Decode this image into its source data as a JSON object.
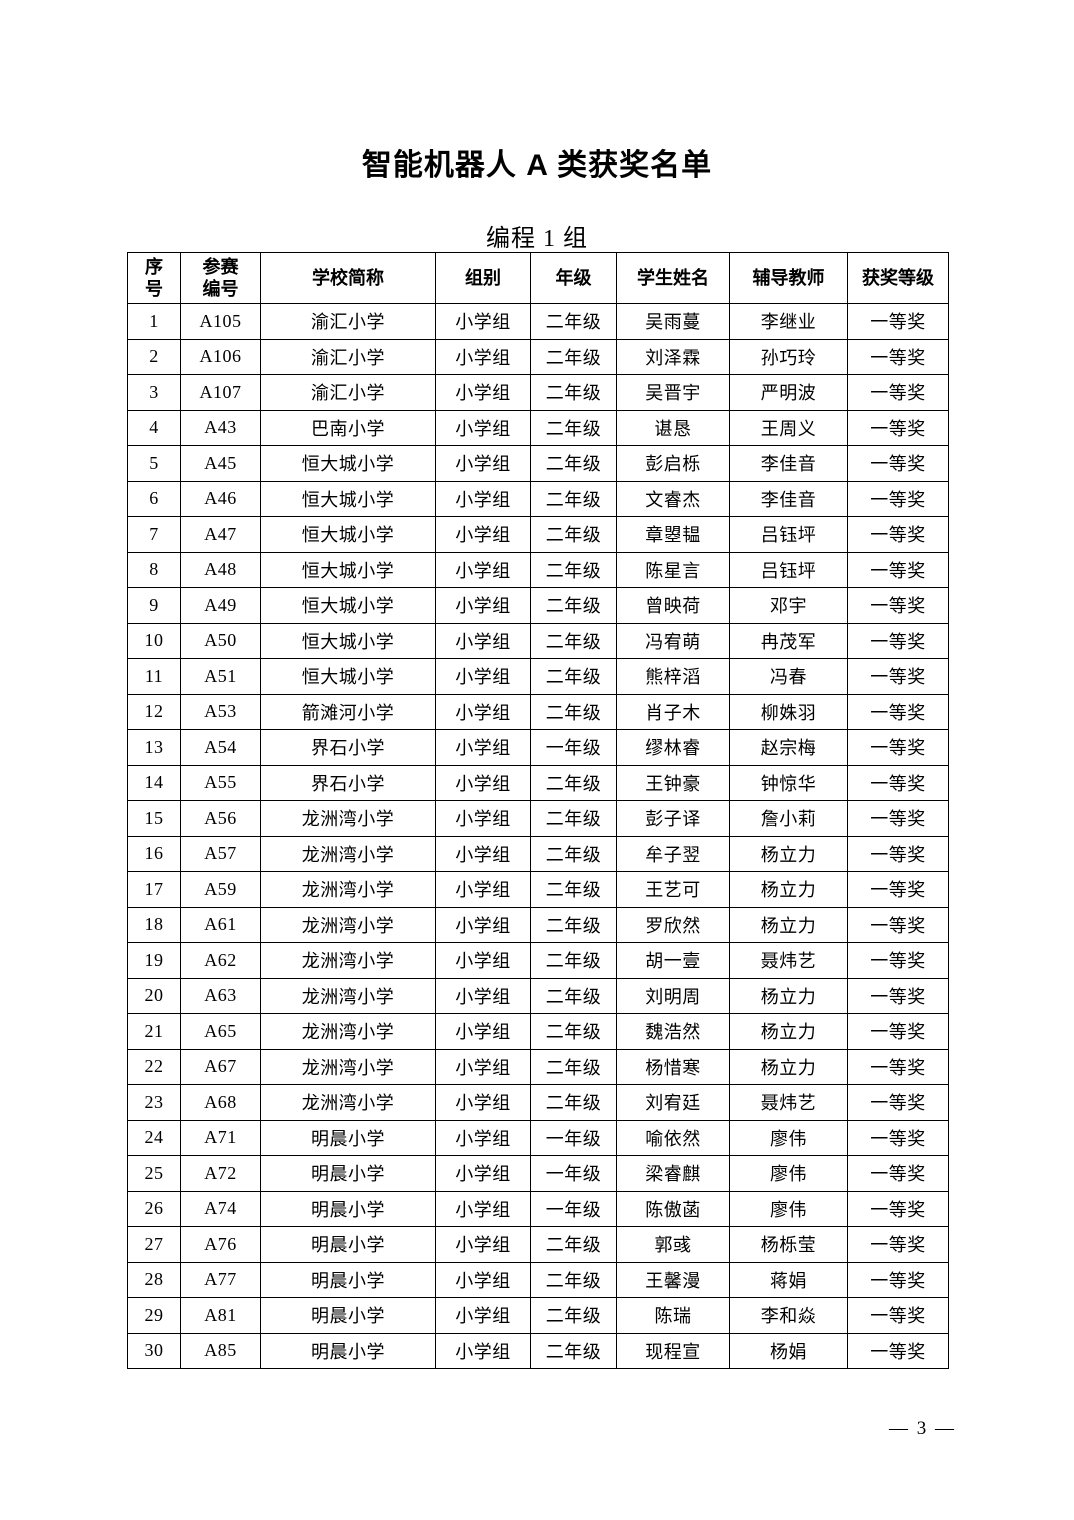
{
  "page": {
    "title": "智能机器人 A 类获奖名单",
    "subtitle": "编程 1 组",
    "page_number": "— 3 —"
  },
  "table": {
    "columns": [
      "序\n号",
      "参赛\n编号",
      "学校简称",
      "组别",
      "年级",
      "学生姓名",
      "辅导教师",
      "获奖等级"
    ],
    "rows": [
      [
        "1",
        "A105",
        "渝汇小学",
        "小学组",
        "二年级",
        "吴雨蔓",
        "李继业",
        "一等奖"
      ],
      [
        "2",
        "A106",
        "渝汇小学",
        "小学组",
        "二年级",
        "刘泽霖",
        "孙巧玲",
        "一等奖"
      ],
      [
        "3",
        "A107",
        "渝汇小学",
        "小学组",
        "二年级",
        "吴晋宇",
        "严明波",
        "一等奖"
      ],
      [
        "4",
        "A43",
        "巴南小学",
        "小学组",
        "二年级",
        "谌恳",
        "王周义",
        "一等奖"
      ],
      [
        "5",
        "A45",
        "恒大城小学",
        "小学组",
        "二年级",
        "彭启栎",
        "李佳音",
        "一等奖"
      ],
      [
        "6",
        "A46",
        "恒大城小学",
        "小学组",
        "二年级",
        "文睿杰",
        "李佳音",
        "一等奖"
      ],
      [
        "7",
        "A47",
        "恒大城小学",
        "小学组",
        "二年级",
        "章曌韫",
        "吕钰坪",
        "一等奖"
      ],
      [
        "8",
        "A48",
        "恒大城小学",
        "小学组",
        "二年级",
        "陈星言",
        "吕钰坪",
        "一等奖"
      ],
      [
        "9",
        "A49",
        "恒大城小学",
        "小学组",
        "二年级",
        "曾映荷",
        "邓宇",
        "一等奖"
      ],
      [
        "10",
        "A50",
        "恒大城小学",
        "小学组",
        "二年级",
        "冯宥萌",
        "冉茂军",
        "一等奖"
      ],
      [
        "11",
        "A51",
        "恒大城小学",
        "小学组",
        "二年级",
        "熊梓滔",
        "冯春",
        "一等奖"
      ],
      [
        "12",
        "A53",
        "箭滩河小学",
        "小学组",
        "二年级",
        "肖子木",
        "柳姝羽",
        "一等奖"
      ],
      [
        "13",
        "A54",
        "界石小学",
        "小学组",
        "一年级",
        "缪林睿",
        "赵宗梅",
        "一等奖"
      ],
      [
        "14",
        "A55",
        "界石小学",
        "小学组",
        "二年级",
        "王钟豪",
        "钟惊华",
        "一等奖"
      ],
      [
        "15",
        "A56",
        "龙洲湾小学",
        "小学组",
        "二年级",
        "彭子译",
        "詹小莉",
        "一等奖"
      ],
      [
        "16",
        "A57",
        "龙洲湾小学",
        "小学组",
        "二年级",
        "牟子翌",
        "杨立力",
        "一等奖"
      ],
      [
        "17",
        "A59",
        "龙洲湾小学",
        "小学组",
        "二年级",
        "王艺可",
        "杨立力",
        "一等奖"
      ],
      [
        "18",
        "A61",
        "龙洲湾小学",
        "小学组",
        "二年级",
        "罗欣然",
        "杨立力",
        "一等奖"
      ],
      [
        "19",
        "A62",
        "龙洲湾小学",
        "小学组",
        "二年级",
        "胡一壹",
        "聂炜艺",
        "一等奖"
      ],
      [
        "20",
        "A63",
        "龙洲湾小学",
        "小学组",
        "二年级",
        "刘明周",
        "杨立力",
        "一等奖"
      ],
      [
        "21",
        "A65",
        "龙洲湾小学",
        "小学组",
        "二年级",
        "魏浩然",
        "杨立力",
        "一等奖"
      ],
      [
        "22",
        "A67",
        "龙洲湾小学",
        "小学组",
        "二年级",
        "杨惜寒",
        "杨立力",
        "一等奖"
      ],
      [
        "23",
        "A68",
        "龙洲湾小学",
        "小学组",
        "二年级",
        "刘宥廷",
        "聂炜艺",
        "一等奖"
      ],
      [
        "24",
        "A71",
        "明晨小学",
        "小学组",
        "一年级",
        "喻依然",
        "廖伟",
        "一等奖"
      ],
      [
        "25",
        "A72",
        "明晨小学",
        "小学组",
        "一年级",
        "梁睿麒",
        "廖伟",
        "一等奖"
      ],
      [
        "26",
        "A74",
        "明晨小学",
        "小学组",
        "一年级",
        "陈傲菡",
        "廖伟",
        "一等奖"
      ],
      [
        "27",
        "A76",
        "明晨小学",
        "小学组",
        "二年级",
        "郭彧",
        "杨栎莹",
        "一等奖"
      ],
      [
        "28",
        "A77",
        "明晨小学",
        "小学组",
        "二年级",
        "王馨漫",
        "蒋娟",
        "一等奖"
      ],
      [
        "29",
        "A81",
        "明晨小学",
        "小学组",
        "二年级",
        "陈瑞",
        "李和焱",
        "一等奖"
      ],
      [
        "30",
        "A85",
        "明晨小学",
        "小学组",
        "二年级",
        "现程宣",
        "杨娟",
        "一等奖"
      ]
    ]
  }
}
